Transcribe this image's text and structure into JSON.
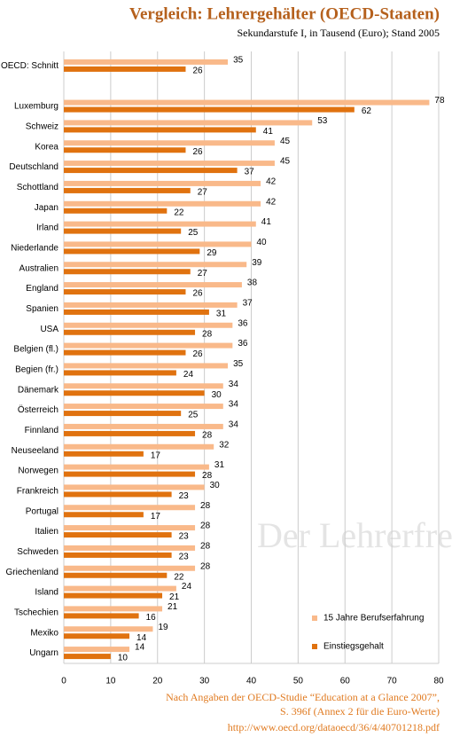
{
  "chart_data": {
    "type": "hbar",
    "title": "Vergleich: Lehrergehälter  (OECD-Staaten)",
    "subtitle": "Sekundarstufe I, in Tausend (Euro); Stand 2005",
    "categories": [
      "OECD: Schnitt",
      null,
      "Luxemburg",
      "Schweiz",
      "Korea",
      "Deutschland",
      "Schottland",
      "Japan",
      "Irland",
      "Niederlande",
      "Australien",
      "England",
      "Spanien",
      "USA",
      "Belgien (fl.)",
      "Begien (fr.)",
      "Dänemark",
      "Österreich",
      "Finnland",
      "Neuseeland",
      "Norwegen",
      "Frankreich",
      "Portugal",
      "Italien",
      "Schweden",
      "Griechenland",
      "Island",
      "Tschechien",
      "Mexiko",
      "Ungarn"
    ],
    "series": [
      {
        "name": "15 Jahre Berufserfahrung",
        "color": "#f9b98a",
        "values": [
          35,
          null,
          78,
          53,
          45,
          45,
          42,
          42,
          41,
          40,
          39,
          38,
          37,
          36,
          36,
          35,
          34,
          34,
          34,
          32,
          31,
          30,
          28,
          28,
          28,
          28,
          24,
          21,
          19,
          14
        ]
      },
      {
        "name": "Einstiegsgehalt",
        "color": "#e0720f",
        "values": [
          26,
          null,
          62,
          41,
          26,
          37,
          27,
          22,
          25,
          29,
          27,
          26,
          31,
          28,
          26,
          24,
          30,
          25,
          28,
          17,
          28,
          23,
          17,
          23,
          23,
          22,
          21,
          16,
          14,
          10
        ]
      }
    ],
    "xlim": [
      0,
      80
    ],
    "xticks": [
      0,
      10,
      20,
      30,
      40,
      50,
      60,
      70,
      80
    ],
    "grid": true,
    "legend": "bottom-right",
    "watermark": "Der Lehrerfreund",
    "notes": [
      "Nach Angaben der OECD-Studie “Education at a Glance 2007”,",
      "S. 396f (Annex 2 für die Euro-Werte)",
      "http://www.oecd.org/dataoecd/36/4/40701218.pdf"
    ]
  }
}
